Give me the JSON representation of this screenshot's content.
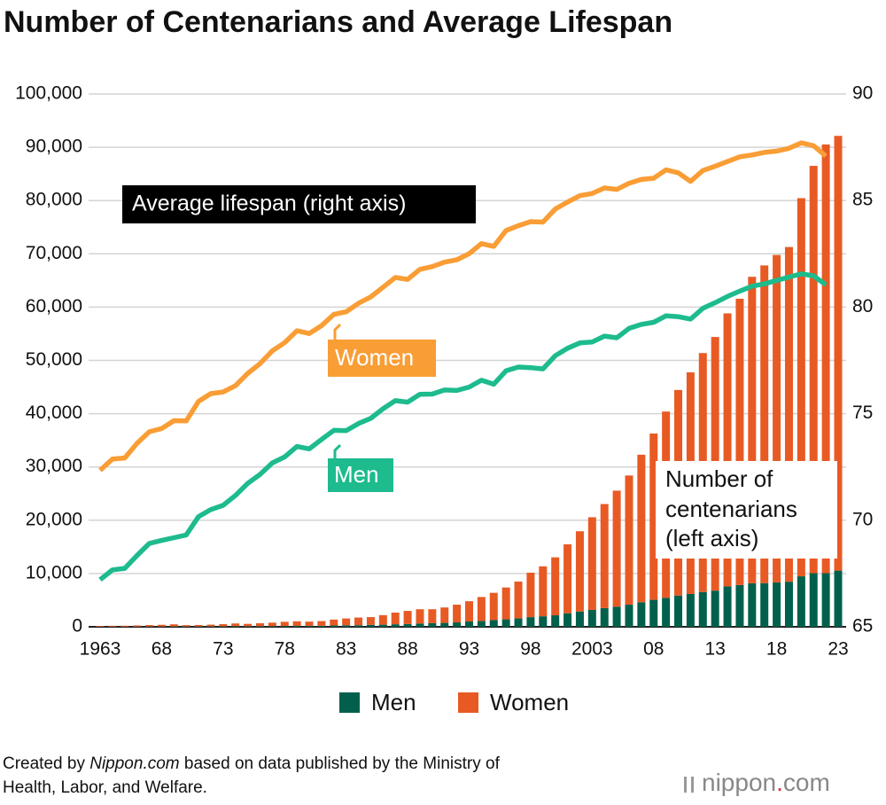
{
  "chart_data": {
    "type": "bar",
    "title": "Number of Centenarians and Average Lifespan",
    "categories": [
      "1963",
      null,
      null,
      null,
      null,
      "68",
      null,
      null,
      null,
      null,
      "73",
      null,
      null,
      null,
      null,
      "78",
      null,
      null,
      null,
      null,
      "83",
      null,
      null,
      null,
      null,
      "88",
      null,
      null,
      null,
      null,
      "93",
      null,
      null,
      null,
      null,
      "98",
      null,
      null,
      null,
      null,
      "2003",
      null,
      null,
      null,
      null,
      "08",
      null,
      null,
      null,
      null,
      "13",
      null,
      null,
      null,
      null,
      "18",
      null,
      null,
      null,
      null,
      "23"
    ],
    "series": [
      {
        "name": "Men",
        "color": "#00604c",
        "values": [
          20,
          40,
          36,
          43,
          52,
          60,
          70,
          62,
          65,
          78,
          93,
          127,
          102,
          108,
          130,
          156,
          166,
          174,
          181,
          245,
          279,
          300,
          359,
          395,
          472,
          524,
          605,
          680,
          734,
          828,
          999,
          1093,
          1255,
          1400,
          1570,
          1812,
          1973,
          2158,
          2541,
          2875,
          3159,
          3523,
          3779,
          4150,
          4613,
          5063,
          5447,
          5869,
          6162,
          6534,
          6791,
          7586,
          7840,
          8167,
          8197,
          8331,
          8464,
          9475,
          10060,
          10060,
          10550
        ]
      },
      {
        "name": "Women",
        "color": "#e85a24",
        "values": [
          133,
          151,
          162,
          209,
          275,
          315,
          395,
          248,
          274,
          327,
          402,
          500,
          446,
          558,
          651,
          781,
          871,
          794,
          891,
          1109,
          1284,
          1440,
          1456,
          1788,
          2196,
          2460,
          2689,
          2618,
          2891,
          3324,
          3803,
          4500,
          5123,
          5973,
          6921,
          8346,
          9373,
          10878,
          12934,
          15059,
          17402,
          19515,
          21775,
          24245,
          27682,
          31213,
          34952,
          38580,
          41594,
          44842,
          47606,
          51234,
          53728,
          57525,
          59627,
          61454,
          62810,
          70975,
          76450,
          80466,
          81589
        ]
      },
      {
        "name": "Women",
        "type": "line",
        "axis": "y2",
        "color": "#f99d35",
        "values": [
          72.34,
          72.87,
          72.92,
          73.61,
          74.15,
          74.3,
          74.67,
          74.66,
          75.58,
          75.94,
          76.02,
          76.31,
          76.89,
          77.35,
          77.95,
          78.33,
          78.89,
          78.76,
          79.13,
          79.66,
          79.78,
          80.18,
          80.48,
          80.93,
          81.39,
          81.3,
          81.77,
          81.9,
          82.11,
          82.22,
          82.51,
          82.98,
          82.85,
          83.59,
          83.82,
          84.01,
          83.99,
          84.6,
          84.93,
          85.23,
          85.33,
          85.59,
          85.52,
          85.81,
          85.99,
          86.05,
          86.44,
          86.3,
          85.9,
          86.41,
          86.61,
          86.83,
          87.05,
          87.14,
          87.26,
          87.32,
          87.45,
          87.71,
          87.57,
          87.09,
          null
        ]
      },
      {
        "name": "Men",
        "type": "line",
        "axis": "y2",
        "color": "#1dbb8e",
        "values": [
          67.21,
          67.67,
          67.74,
          68.35,
          68.91,
          69.05,
          69.18,
          69.31,
          70.17,
          70.5,
          70.7,
          71.16,
          71.73,
          72.15,
          72.69,
          72.97,
          73.46,
          73.35,
          73.79,
          74.22,
          74.2,
          74.54,
          74.78,
          75.23,
          75.61,
          75.54,
          75.91,
          75.92,
          76.11,
          76.09,
          76.25,
          76.57,
          76.38,
          77.01,
          77.19,
          77.16,
          77.1,
          77.72,
          78.07,
          78.32,
          78.36,
          78.64,
          78.56,
          79,
          79.19,
          79.29,
          79.59,
          79.55,
          79.44,
          79.94,
          80.21,
          80.5,
          80.75,
          80.98,
          81.09,
          81.25,
          81.41,
          81.56,
          81.47,
          81.05,
          null
        ]
      }
    ],
    "ylim": [
      0,
      100000
    ],
    "yticks": [
      0,
      {
        "value": 10000,
        "label": "10,000"
      },
      {
        "value": 20000,
        "label": "20,000"
      },
      {
        "value": 30000,
        "label": "30,000"
      },
      {
        "value": 40000,
        "label": "40,000"
      },
      {
        "value": 50000,
        "label": "50,000"
      },
      {
        "value": 60000,
        "label": "60,000"
      },
      {
        "value": 70000,
        "label": "70,000"
      },
      {
        "value": 80000,
        "label": "80,000"
      },
      {
        "value": 90000,
        "label": "90,000"
      },
      {
        "value": 100000,
        "label": "100,000"
      }
    ],
    "y2lim": [
      65,
      90
    ],
    "y2ticks": [
      65,
      70,
      75,
      80,
      85,
      90
    ],
    "grid": true,
    "annotations": {
      "lifespan": "Average lifespan (right axis)",
      "count": [
        "Number of",
        "centenarians",
        "(left axis)"
      ]
    },
    "source": [
      "Created by ",
      "Nippon.com",
      " based on data published by the Ministry of",
      "Health, Labor, and Welfare."
    ],
    "logo": [
      "nippon",
      ".",
      "com"
    ]
  }
}
